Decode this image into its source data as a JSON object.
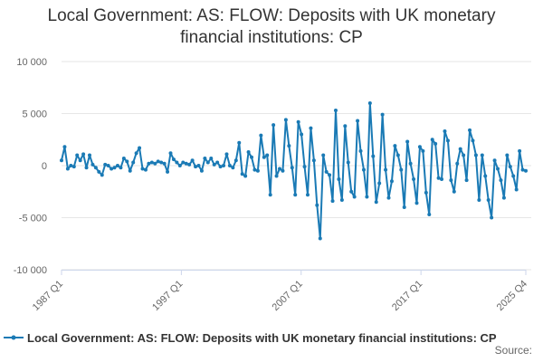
{
  "title_lines": [
    "Local Government: AS: FLOW: Deposits with UK monetary",
    "financial institutions: CP"
  ],
  "source_label": "Source:",
  "series_color": "#1a7ab5",
  "chart_data": {
    "type": "line",
    "title": "Local Government: AS: FLOW: Deposits with UK monetary financial institutions: CP",
    "xlabel": "",
    "ylabel": "",
    "x_range": [
      "1987 Q1",
      "2025 Q4"
    ],
    "x_tick_labels": [
      "1987 Q1",
      "1997 Q1",
      "2007 Q1",
      "2017 Q1",
      "2025 Q4"
    ],
    "ylim": [
      -10000,
      10000
    ],
    "y_ticks": [
      10000,
      5000,
      0,
      -5000,
      -10000
    ],
    "y_tick_labels": [
      "10 000",
      "5 000",
      "0",
      "-5 000",
      "-10 000"
    ],
    "grid": "horizontal",
    "legend": "bottom",
    "series": [
      {
        "name": "Local Government: AS: FLOW: Deposits with UK monetary financial institutions: CP",
        "values": [
          500,
          1800,
          -300,
          0,
          -100,
          1000,
          500,
          1100,
          -200,
          1000,
          100,
          -200,
          -600,
          -900,
          100,
          0,
          -300,
          -200,
          0,
          -200,
          700,
          400,
          -500,
          300,
          1200,
          1700,
          -300,
          -400,
          200,
          300,
          200,
          400,
          300,
          200,
          -600,
          1200,
          600,
          300,
          0,
          300,
          200,
          100,
          500,
          -100,
          0,
          -500,
          700,
          300,
          700,
          100,
          300,
          -100,
          0,
          1100,
          0,
          -200,
          500,
          2200,
          -800,
          -1000,
          1300,
          800,
          -400,
          -500,
          2900,
          800,
          1000,
          -2800,
          3900,
          -1000,
          -300,
          -500,
          4400,
          1900,
          -200,
          -2800,
          4200,
          3000,
          -100,
          -2800,
          3600,
          500,
          -3800,
          -7000,
          1000,
          -600,
          -900,
          -3400,
          5300,
          -1300,
          -3300,
          3800,
          300,
          -2500,
          -3000,
          4300,
          1400,
          -400,
          -3000,
          6000,
          900,
          -3500,
          -1700,
          4900,
          -400,
          -3100,
          -1500,
          1900,
          1000,
          -400,
          -4000,
          2300,
          200,
          -1300,
          -3600,
          1800,
          1400,
          -2600,
          -4700,
          2500,
          2100,
          -1200,
          -1300,
          3300,
          2400,
          -1400,
          -2500,
          200,
          1600,
          1000,
          -1400,
          3400,
          2400,
          1000,
          -3300,
          1000,
          -1000,
          -3300,
          -5000,
          500,
          -300,
          -1400,
          -3100,
          1000,
          -100,
          -1000,
          -2300,
          1400,
          -400,
          -500
        ]
      }
    ]
  }
}
